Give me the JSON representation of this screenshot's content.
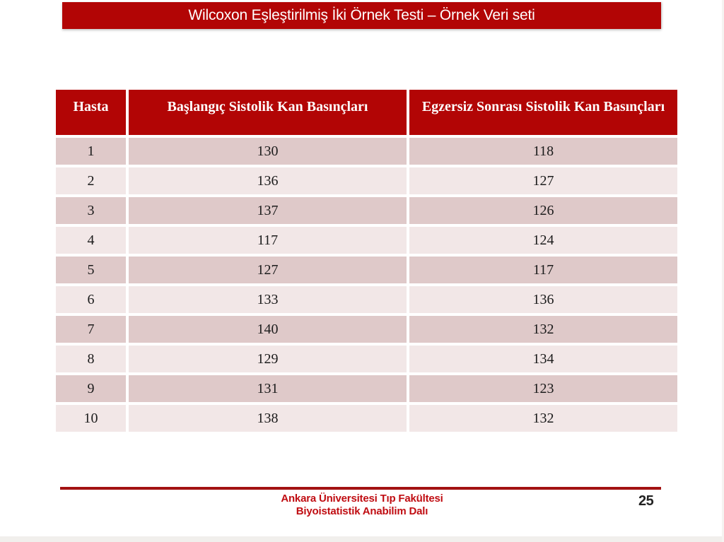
{
  "slide": {
    "title": "Wilcoxon Eşleştirilmiş İki Örnek Testi – Örnek Veri seti",
    "page_number": "25",
    "footer_line1": "Ankara Üniversitesi Tıp Fakültesi",
    "footer_line2": "Biyoistatistik Anabilim Dalı"
  },
  "table": {
    "columns": [
      "Hasta",
      "Başlangıç Sistolik Kan Basınçları",
      "Egzersiz Sonrası Sistolik Kan Basınçları"
    ],
    "rows": [
      [
        "1",
        "130",
        "118"
      ],
      [
        "2",
        "136",
        "127"
      ],
      [
        "3",
        "137",
        "126"
      ],
      [
        "4",
        "117",
        "124"
      ],
      [
        "5",
        "127",
        "117"
      ],
      [
        "6",
        "133",
        "136"
      ],
      [
        "7",
        "140",
        "132"
      ],
      [
        "8",
        "129",
        "134"
      ],
      [
        "9",
        "131",
        "123"
      ],
      [
        "10",
        "138",
        "132"
      ]
    ]
  },
  "colors": {
    "title_bar_bg": "#B20505",
    "title_text": "#FFFFFF",
    "header_bg": "#B20505",
    "row_dark": "#DFC9C9",
    "row_light": "#F2E7E7",
    "divider": "#A31212",
    "footer_text": "#C00D12",
    "page_number": "#222222"
  }
}
